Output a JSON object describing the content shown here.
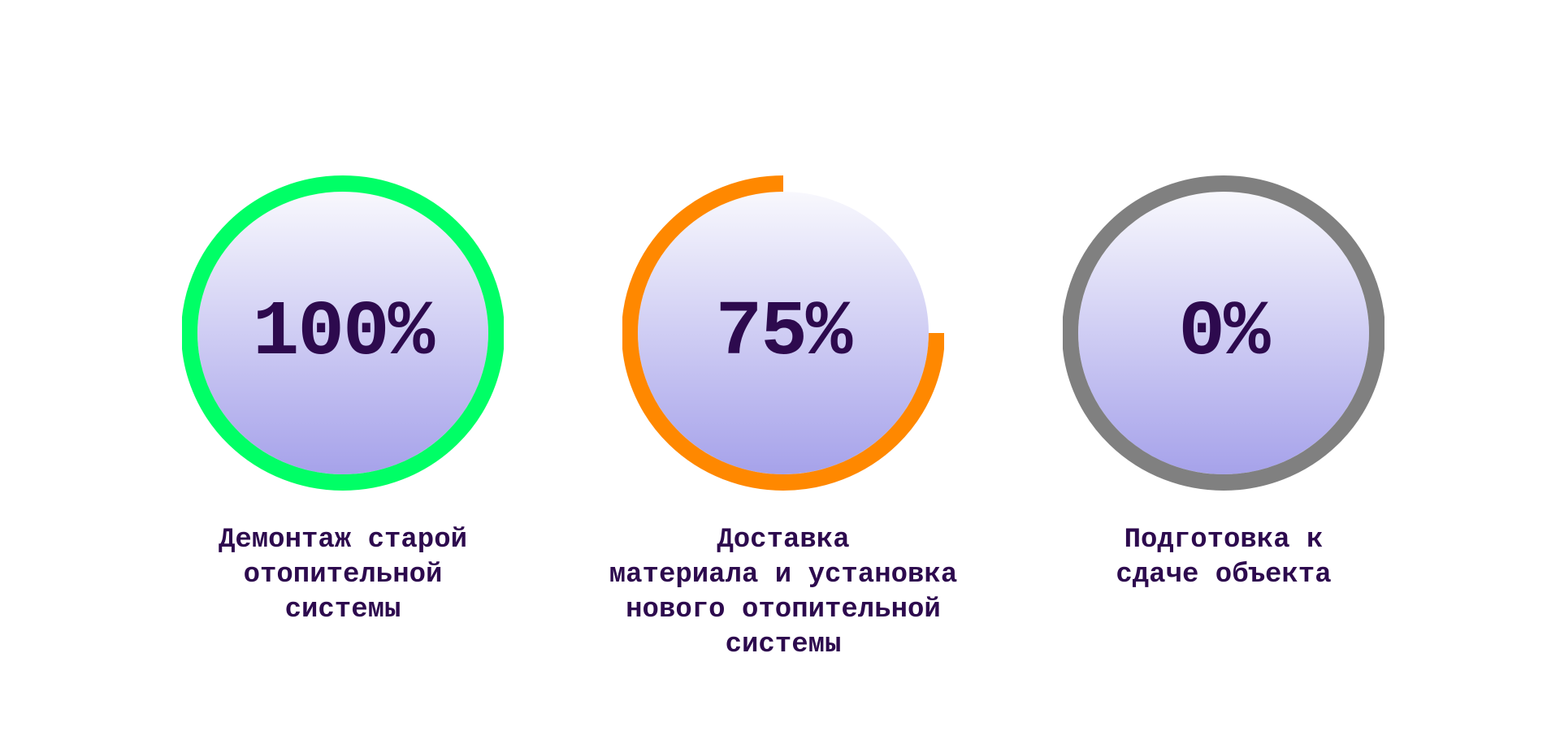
{
  "progress_items": [
    {
      "percent_label": "100%",
      "percent": 100,
      "label": "Демонтаж старой\nотопительной\nсистемы",
      "ring_color": "#00ff66"
    },
    {
      "percent_label": "75%",
      "percent": 75,
      "label": "Доставка\nматериала и установка\nнового отопительной\nсистемы",
      "ring_color": "#ff8800"
    },
    {
      "percent_label": "0%",
      "percent": 0,
      "label": "Подготовка к\nсдаче объекта",
      "ring_color": "#808080"
    }
  ],
  "colors": {
    "text": "#2d0a4e",
    "fill_top": "#f8f8fd",
    "fill_bottom": "#a6a2ea"
  }
}
